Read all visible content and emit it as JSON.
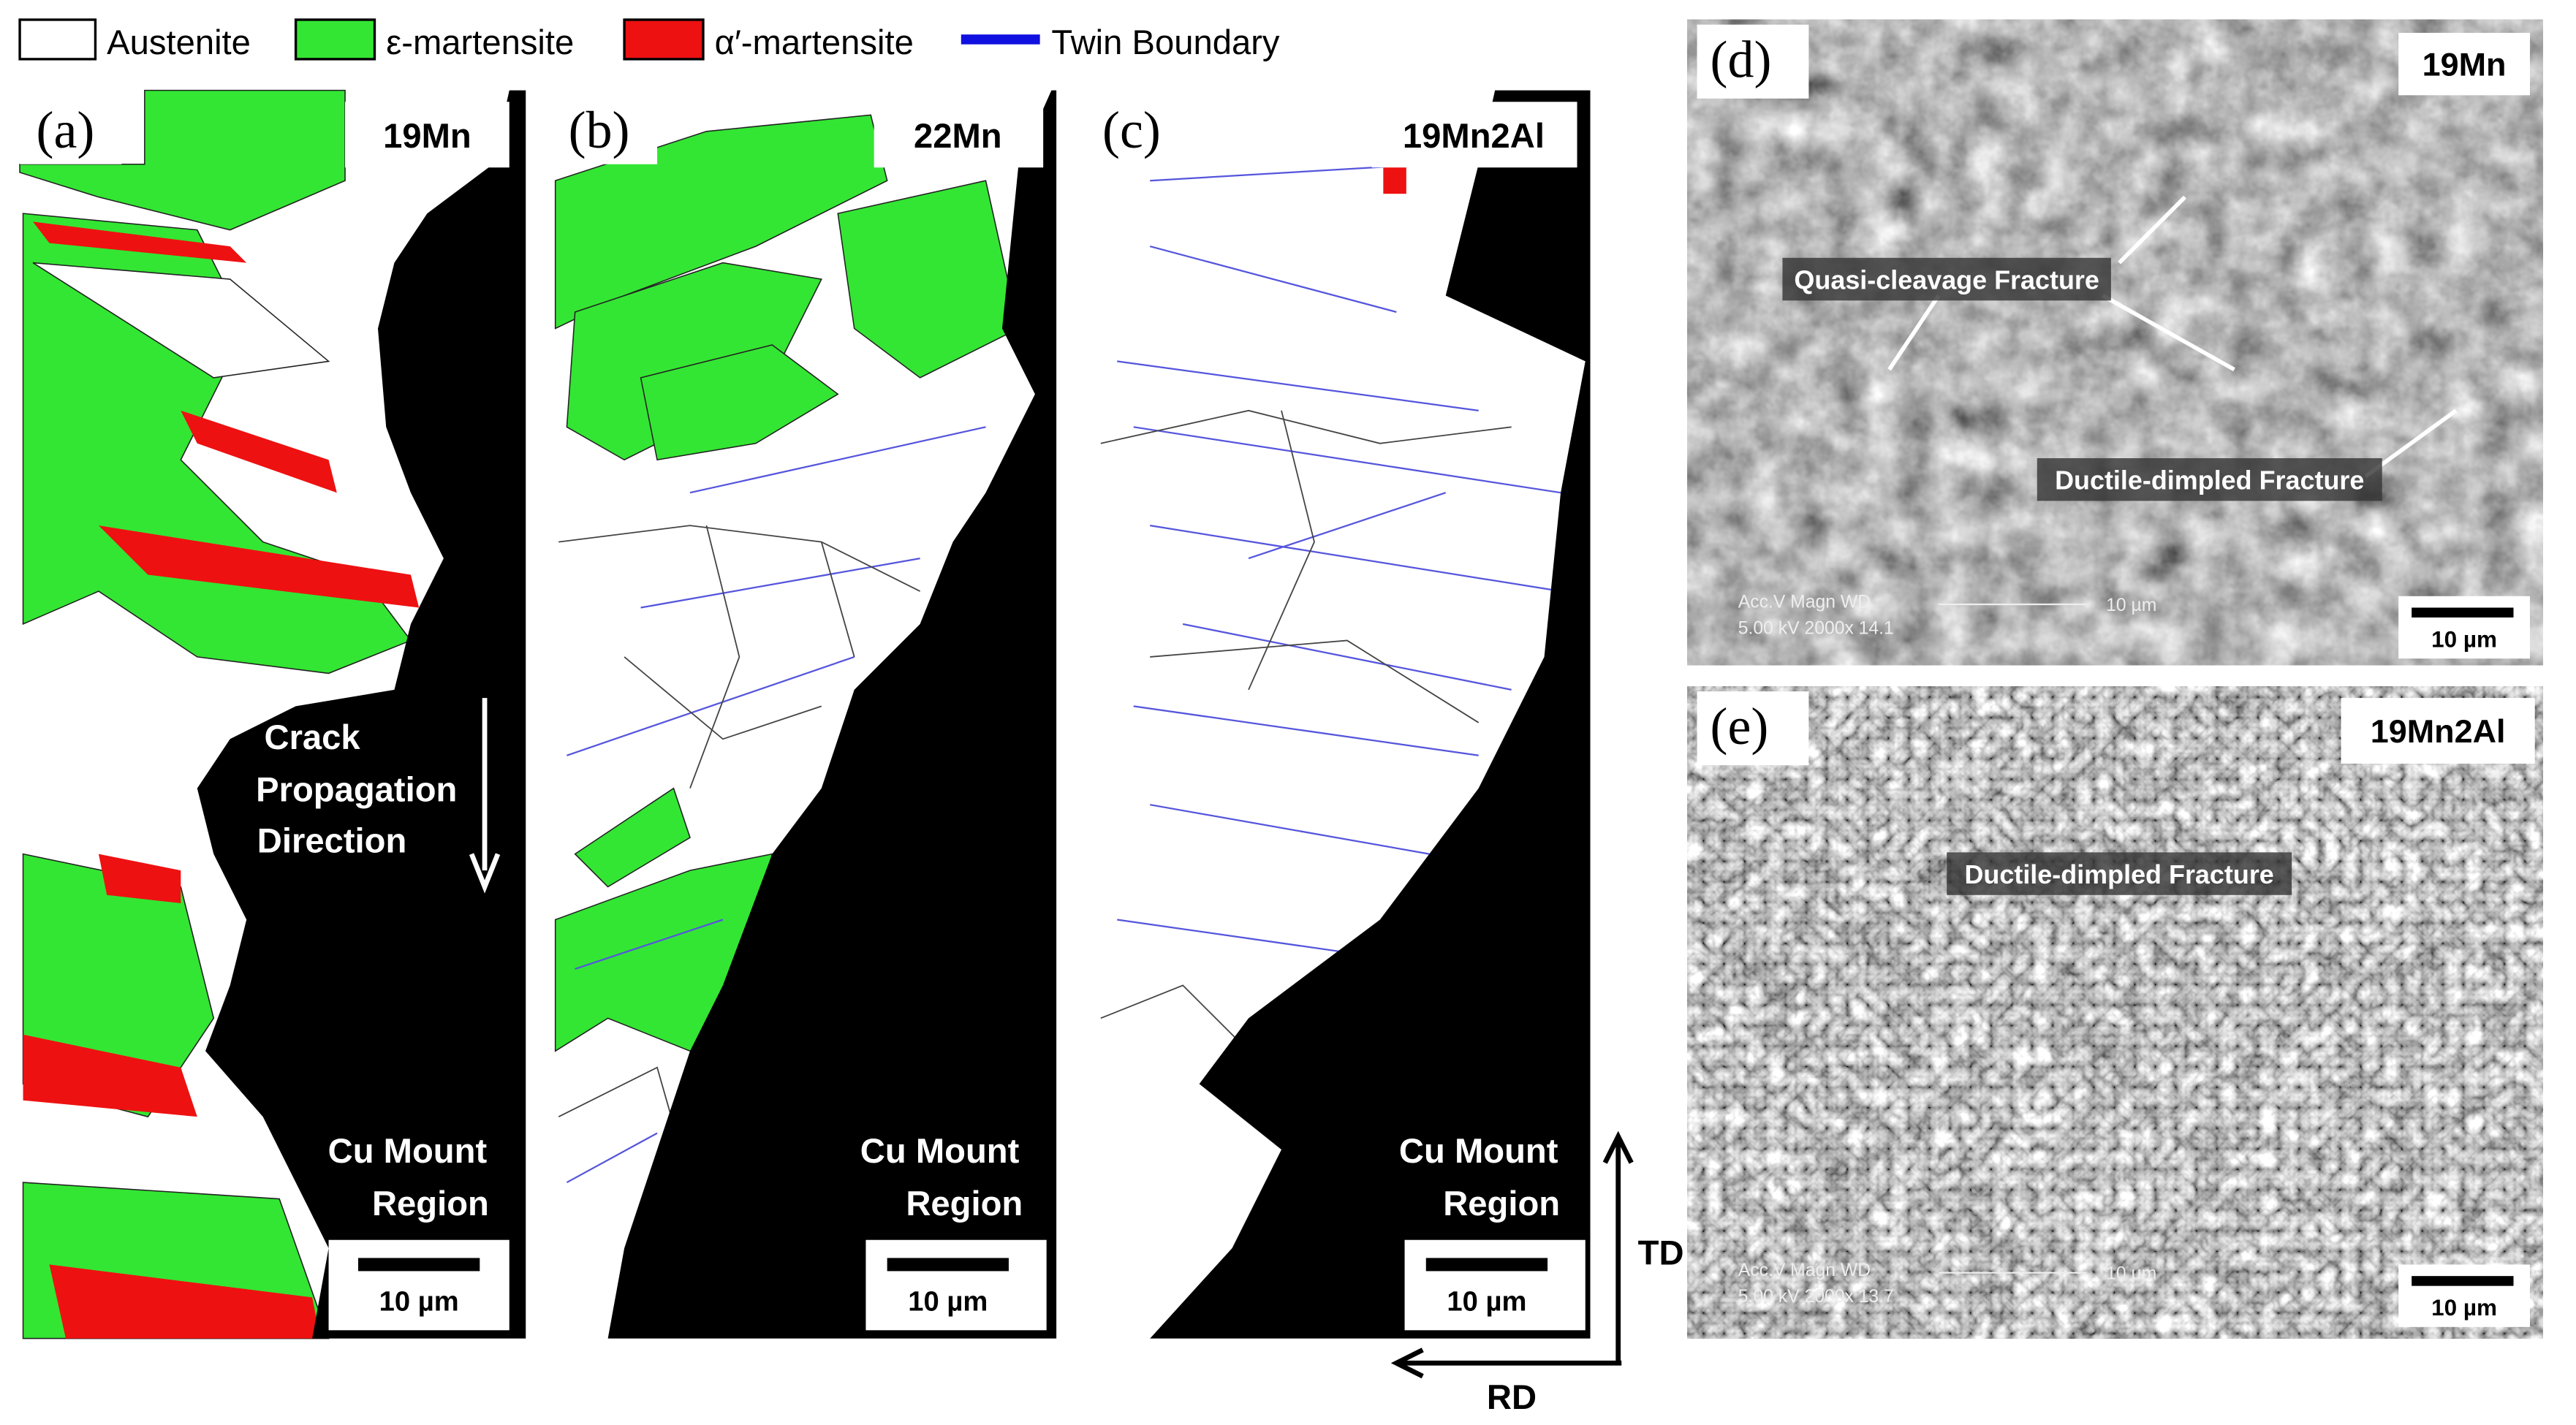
{
  "legend": [
    {
      "label": "Austenite",
      "color": "#ffffff"
    },
    {
      "label": "ε-martensite",
      "color": "#33e633"
    },
    {
      "label": "α′-martensite",
      "color": "#ee1111"
    },
    {
      "label": "Twin Boundary",
      "color": "#1010e0"
    }
  ],
  "ebsd_panels": [
    {
      "label": "(a)",
      "sample": "19Mn",
      "region": [
        "Cu Mount",
        "Region"
      ],
      "scale_bar": "10 µm"
    },
    {
      "label": "(b)",
      "sample": "22Mn",
      "region": [
        "Cu Mount",
        "Region"
      ],
      "scale_bar": "10 µm"
    },
    {
      "label": "(c)",
      "sample": "19Mn2Al",
      "region": [
        "Cu Mount",
        "Region"
      ],
      "scale_bar": "10 µm"
    }
  ],
  "crack_annotation": [
    "Crack",
    "Propagation",
    "Direction"
  ],
  "axes": {
    "td": "TD",
    "rd": "RD"
  },
  "sem_panels": [
    {
      "label": "(d)",
      "sample": "19Mn",
      "annotations": [
        "Quasi-cleavage Fracture",
        "Ductile-dimpled Fracture"
      ],
      "meta_header": "Acc.V  Magn   WD",
      "meta_values": "5.00 kV 2000x  14.1",
      "meta_scale": "10 µm",
      "scale_bar": "10 µm"
    },
    {
      "label": "(e)",
      "sample": "19Mn2Al",
      "annotations": [
        "Ductile-dimpled Fracture"
      ],
      "meta_header": "Acc.V  Magn   WD",
      "meta_values": "5.00 kV 2000x  13.7",
      "meta_scale": "10 µm",
      "scale_bar": "10 µm"
    }
  ]
}
